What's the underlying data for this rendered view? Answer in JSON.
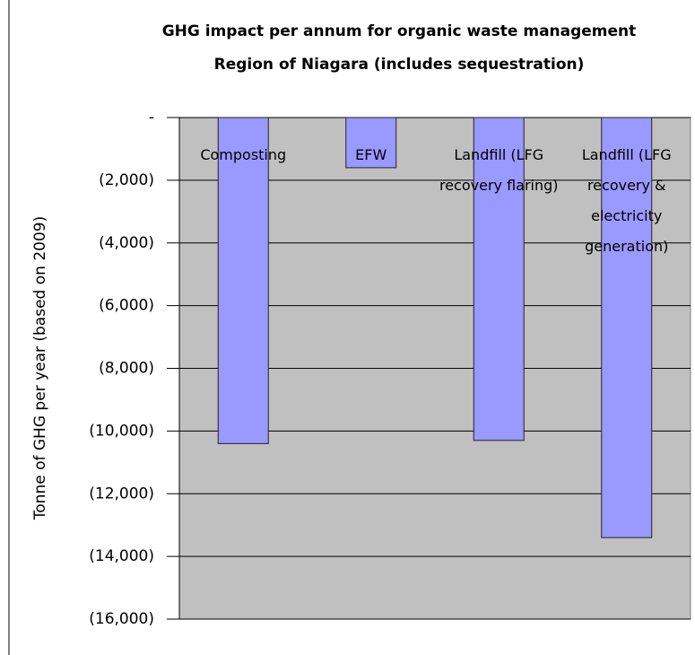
{
  "chart_data": {
    "type": "bar",
    "title": "GHG impact per annum for organic waste management",
    "subtitle": "Region of Niagara (includes sequestration)",
    "y_label": "Tonne of GHG per year (based on 2009)",
    "categories": [
      "Composting",
      "EFW",
      "Landfill (LFG recovery flaring)",
      "Landfill (LFG recovery & electricity generation)"
    ],
    "values": [
      -10400,
      -1600,
      -10300,
      -13400
    ],
    "color": "#9999ff",
    "ylim": [
      -16000,
      0
    ],
    "yticks": [
      {
        "value": 0,
        "label": "-"
      },
      {
        "value": -2000,
        "label": "(2,000)"
      },
      {
        "value": -4000,
        "label": "(4,000)"
      },
      {
        "value": -6000,
        "label": "(6,000)"
      },
      {
        "value": -8000,
        "label": "(8,000)"
      },
      {
        "value": -10000,
        "label": "(10,000)"
      },
      {
        "value": -12000,
        "label": "(12,000)"
      },
      {
        "value": -14000,
        "label": "(14,000)"
      },
      {
        "value": -16000,
        "label": "(16,000)"
      }
    ],
    "grid": true
  }
}
